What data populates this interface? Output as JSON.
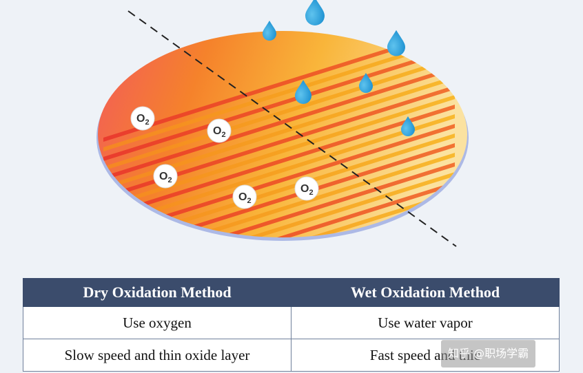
{
  "diagram": {
    "molecule_label": "O",
    "molecule_subscript": "2",
    "colors": {
      "dry_side": "#e8332a",
      "wet_side": "#f7a21b",
      "droplet": "#1a9ad6",
      "wafer_edge": "#f6d7a0",
      "divider": "#222222"
    }
  },
  "table": {
    "headers": [
      "Dry Oxidation Method",
      "Wet Oxidation Method"
    ],
    "rows": [
      [
        "Use oxygen",
        "Use water vapor"
      ],
      [
        "Slow speed and thin oxide layer",
        "Fast speed and thic"
      ]
    ]
  },
  "watermark": {
    "text": "知乎 @职场学霸"
  }
}
